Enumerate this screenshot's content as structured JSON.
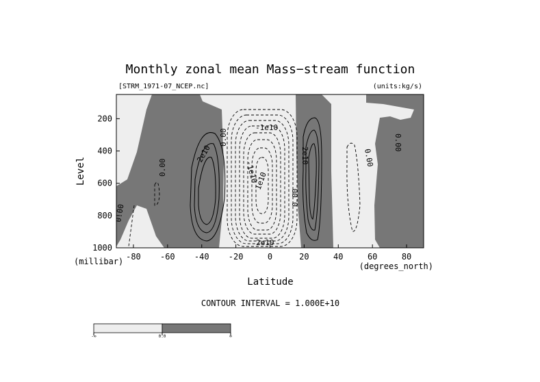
{
  "chart_data": {
    "type": "contour",
    "title": "Monthly zonal mean Mass−stream function",
    "file_label": "[STRM_1971-07_NCEP.nc]",
    "units_label": "(units:kg/s)",
    "xlabel": "Latitude",
    "xunits": "(degrees_north)",
    "ylabel": "Level",
    "yunits": "(millibar)",
    "xlim": [
      -90,
      90
    ],
    "ylim": [
      1000,
      50
    ],
    "y_inverted": true,
    "x_ticks": [
      -80,
      -60,
      -40,
      -20,
      0,
      20,
      40,
      60,
      80
    ],
    "y_ticks": [
      200,
      400,
      600,
      800,
      1000
    ],
    "contour_interval_text": "CONTOUR INTERVAL = 1.000E+10",
    "contour_labels": [
      "0.00",
      "0.00",
      "0.00",
      "0.00",
      "0.00",
      "0.00",
      "2e10",
      "2e10",
      "-1e10",
      "-1e10",
      "1e10",
      "2e10"
    ],
    "colorbar": {
      "levels": [
        "-∞",
        "0.0",
        "∞"
      ],
      "colors": [
        "#eeeeee",
        "#777777"
      ]
    },
    "colors": {
      "negative_fill": "#eeeeee",
      "positive_fill": "#777777"
    }
  }
}
